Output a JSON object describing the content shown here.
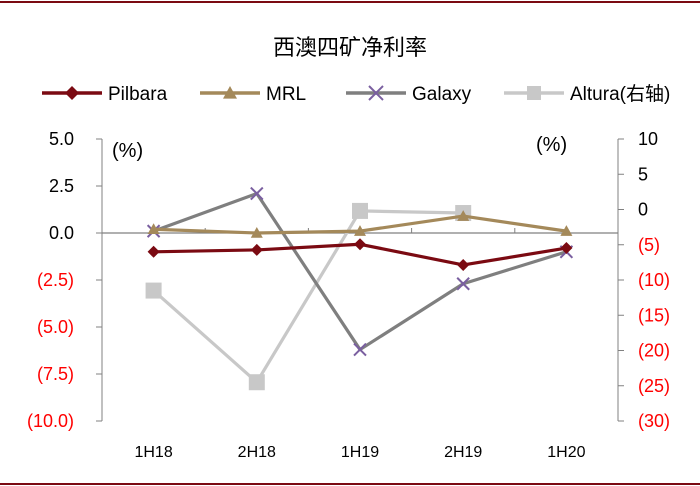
{
  "chart_data": {
    "type": "line",
    "title": "西澳四矿净利率",
    "categories": [
      "1H18",
      "2H18",
      "1H19",
      "2H19",
      "1H20"
    ],
    "y_left": {
      "unit": "(%)",
      "ylim": [
        -10,
        5
      ],
      "ticks": [
        5.0,
        2.5,
        0.0,
        -2.5,
        -5.0,
        -7.5,
        -10.0
      ],
      "tick_labels": [
        "5.0",
        "2.5",
        "0.0",
        "(2.5)",
        "(5.0)",
        "(7.5)",
        "(10.0)"
      ]
    },
    "y_right": {
      "unit": "(%)",
      "ylim": [
        -30,
        10
      ],
      "ticks": [
        10,
        5,
        0,
        -5,
        -10,
        -15,
        -20,
        -25,
        -30
      ],
      "tick_labels": [
        "10",
        "5",
        "0",
        "(5)",
        "(10)",
        "(15)",
        "(20)",
        "(25)",
        "(30)"
      ]
    },
    "series": [
      {
        "name": "Pilbara",
        "axis": "left",
        "color": "#7b0a12",
        "marker": "diamond",
        "values": [
          -1.0,
          -0.9,
          -0.6,
          -1.7,
          -0.8
        ]
      },
      {
        "name": "MRL",
        "axis": "left",
        "color": "#a4895a",
        "marker": "triangle",
        "values": [
          0.2,
          0.0,
          0.1,
          0.9,
          0.1
        ]
      },
      {
        "name": "Galaxy",
        "axis": "left",
        "color": "#7f7f7f",
        "marker": "x",
        "values": [
          0.1,
          2.1,
          -6.2,
          -2.7,
          -1.0
        ]
      },
      {
        "name": "Altura(右轴)",
        "axis": "right",
        "color": "#c8c8c8",
        "marker": "square",
        "values": [
          -11.5,
          -24.5,
          -0.2,
          -0.5,
          null
        ]
      }
    ],
    "colors": {
      "positive_tick": "#000000",
      "negative_tick": "#ff0000",
      "border": "#7b0a12",
      "axis": "#808080"
    }
  }
}
